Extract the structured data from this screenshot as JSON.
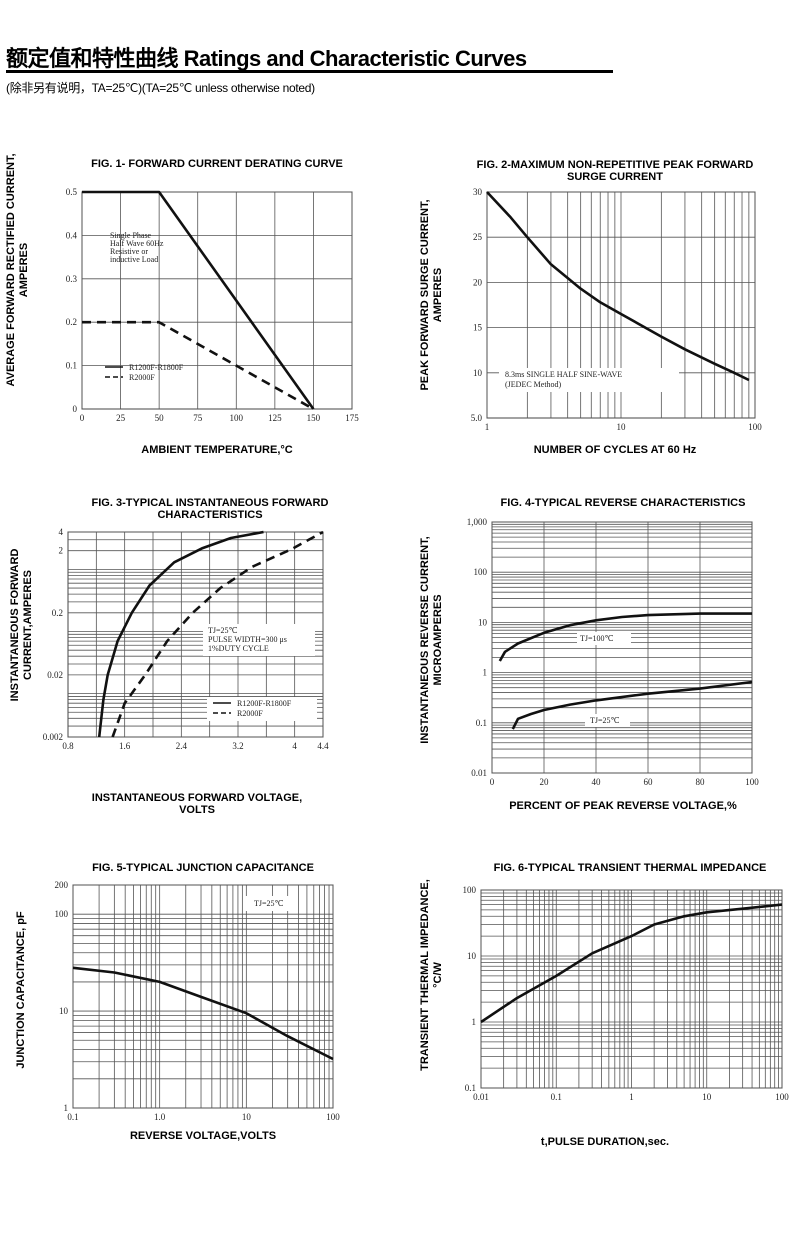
{
  "header": {
    "title": "额定值和特性曲线 Ratings and Characteristic Curves",
    "subtitle": "(除非另有说明，TA=25℃)(TA=25℃  unless otherwise noted)"
  },
  "chart_data": [
    {
      "type": "line",
      "title": [
        "FIG. 1- FORWARD CURRENT DERATING CURVE"
      ],
      "xlabel": [
        "AMBIENT TEMPERATURE,°C"
      ],
      "ylabel": [
        "AVERAGE FORWARD RECTIFIED CURRENT,",
        "AMPERES"
      ],
      "xscale": "linear",
      "yscale": "linear",
      "xlim": [
        0,
        175
      ],
      "ylim": [
        0,
        0.5
      ],
      "x_ticks": [
        "0",
        "25",
        "50",
        "75",
        "100",
        "125",
        "150",
        "175"
      ],
      "y_ticks": [
        "0",
        "0.1",
        "0.2",
        "0.3",
        "0.4",
        "0.5"
      ],
      "grid": true,
      "series": [
        {
          "name": "R1200F-R1800F",
          "style": "solid",
          "points": [
            [
              0,
              0.5
            ],
            [
              50,
              0.5
            ],
            [
              150,
              0
            ]
          ]
        },
        {
          "name": "R2000F",
          "style": "dashed",
          "points": [
            [
              0,
              0.2
            ],
            [
              50,
              0.2
            ],
            [
              150,
              0
            ]
          ]
        }
      ],
      "annotations": [
        "Single Phase",
        "Half Wave 60Hz",
        "Resistive or",
        "inductive Load"
      ],
      "legend": "bottom-left"
    },
    {
      "type": "line",
      "title": [
        "FIG. 2-MAXIMUM NON-REPETITIVE PEAK FORWARD",
        "SURGE CURRENT"
      ],
      "xlabel": [
        "NUMBER OF CYCLES AT 60 Hz"
      ],
      "ylabel": [
        "PEAK FORWARD SURGE CURRENT,",
        "AMPERES"
      ],
      "xscale": "log",
      "yscale": "linear",
      "xlim": [
        1,
        100
      ],
      "ylim": [
        5,
        30
      ],
      "x_ticks": [
        "1",
        "10",
        "100"
      ],
      "y_ticks": [
        "5.0",
        "10",
        "15",
        "20",
        "25",
        "30"
      ],
      "grid": true,
      "series": [
        {
          "style": "solid",
          "points": [
            [
              1,
              30
            ],
            [
              1.5,
              27.2
            ],
            [
              2,
              25
            ],
            [
              3,
              22
            ],
            [
              5,
              19.3
            ],
            [
              7,
              17.8
            ],
            [
              10,
              16.5
            ],
            [
              20,
              14
            ],
            [
              30,
              12.6
            ],
            [
              50,
              11
            ],
            [
              70,
              10
            ],
            [
              90,
              9.2
            ]
          ]
        }
      ],
      "annotations": [
        "8.3ms SINGLE HALF SINE-WAVE",
        "(JEDEC Method)"
      ]
    },
    {
      "type": "line",
      "title": [
        "FIG. 3-TYPICAL INSTANTANEOUS FORWARD",
        "CHARACTERISTICS"
      ],
      "xlabel": [
        "INSTANTANEOUS FORWARD VOLTAGE,",
        "VOLTS"
      ],
      "ylabel": [
        "INSTANTANEOUS FORWARD",
        "CURRENT,AMPERES"
      ],
      "xscale": "linear",
      "yscale": "log",
      "xlim": [
        0.8,
        4.4
      ],
      "ylim": [
        0.002,
        4
      ],
      "x_ticks": [
        "0.8",
        "1.6",
        "2.4",
        "3.2",
        "4",
        "4.4"
      ],
      "y_ticks": [
        "0.002",
        "0.02",
        "0.2",
        "2",
        "4"
      ],
      "grid": true,
      "series": [
        {
          "name": "R1200F-R1800F",
          "style": "solid",
          "points": [
            [
              1.24,
              0.002
            ],
            [
              1.3,
              0.008
            ],
            [
              1.36,
              0.02
            ],
            [
              1.5,
              0.07
            ],
            [
              1.7,
              0.2
            ],
            [
              1.95,
              0.55
            ],
            [
              2.3,
              1.3
            ],
            [
              2.7,
              2.2
            ],
            [
              3.1,
              3.2
            ],
            [
              3.56,
              4
            ]
          ]
        },
        {
          "name": "R2000F",
          "style": "dashed",
          "points": [
            [
              1.43,
              0.002
            ],
            [
              1.6,
              0.007
            ],
            [
              1.89,
              0.02
            ],
            [
              2.2,
              0.07
            ],
            [
              2.56,
              0.2
            ],
            [
              2.95,
              0.5
            ],
            [
              3.4,
              1.1
            ],
            [
              3.95,
              2.1
            ],
            [
              4.4,
              4
            ]
          ]
        }
      ],
      "annotations": [
        "TJ=25℃",
        "PULSE WIDTH=300 μs",
        "1%DUTY CYCLE"
      ],
      "legend": "bottom-right"
    },
    {
      "type": "line",
      "title": [
        "FIG. 4-TYPICAL REVERSE CHARACTERISTICS"
      ],
      "xlabel": [
        "PERCENT OF PEAK REVERSE VOLTAGE,%"
      ],
      "ylabel": [
        "INSTANTANEOUS REVERSE CURRENT,",
        "MICROAMPERES"
      ],
      "xscale": "linear",
      "yscale": "log",
      "xlim": [
        0,
        100
      ],
      "ylim": [
        0.01,
        1000
      ],
      "x_ticks": [
        "0",
        "20",
        "40",
        "60",
        "80",
        "100"
      ],
      "y_ticks": [
        "0.01",
        "0.1",
        "1",
        "10",
        "100",
        "1,000"
      ],
      "grid": true,
      "series": [
        {
          "name": "TJ=100℃",
          "style": "solid",
          "points": [
            [
              3,
              1.7
            ],
            [
              5,
              2.6
            ],
            [
              10,
              3.8
            ],
            [
              20,
              6.2
            ],
            [
              30,
              8.8
            ],
            [
              40,
              11
            ],
            [
              50,
              12.8
            ],
            [
              60,
              14
            ],
            [
              80,
              15
            ],
            [
              100,
              15
            ]
          ]
        },
        {
          "name": "TJ=25℃",
          "style": "solid",
          "points": [
            [
              8,
              0.075
            ],
            [
              10,
              0.12
            ],
            [
              15,
              0.15
            ],
            [
              20,
              0.18
            ],
            [
              30,
              0.23
            ],
            [
              40,
              0.28
            ],
            [
              60,
              0.38
            ],
            [
              80,
              0.48
            ],
            [
              100,
              0.65
            ]
          ]
        }
      ],
      "annotations": [
        "TJ=100℃",
        "TJ=25℃"
      ]
    },
    {
      "type": "line",
      "title": [
        "FIG. 5-TYPICAL JUNCTION CAPACITANCE"
      ],
      "xlabel": [
        "REVERSE VOLTAGE,VOLTS"
      ],
      "ylabel": [
        "JUNCTION CAPACITANCE, pF"
      ],
      "xscale": "log",
      "yscale": "log",
      "xlim": [
        0.1,
        100
      ],
      "ylim": [
        1,
        200
      ],
      "x_ticks": [
        "0.1",
        "1.0",
        "10",
        "100"
      ],
      "y_ticks": [
        "1",
        "10",
        "100",
        "200"
      ],
      "grid": true,
      "series": [
        {
          "style": "solid",
          "points": [
            [
              0.1,
              28
            ],
            [
              0.3,
              25
            ],
            [
              1,
              20
            ],
            [
              3,
              14
            ],
            [
              10,
              9.5
            ],
            [
              30,
              5.5
            ],
            [
              100,
              3.2
            ]
          ]
        }
      ],
      "annotations": [
        "TJ=25℃"
      ]
    },
    {
      "type": "line",
      "title": [
        "FIG. 6-TYPICAL TRANSIENT THERMAL IMPEDANCE"
      ],
      "xlabel": [
        "t,PULSE DURATION,sec."
      ],
      "ylabel": [
        "TRANSIENT THERMAL IMPEDANCE,",
        "°C/W"
      ],
      "xscale": "log",
      "yscale": "log",
      "xlim": [
        0.01,
        100
      ],
      "ylim": [
        0.1,
        100
      ],
      "x_ticks": [
        "0.01",
        "0.1",
        "1",
        "10",
        "100"
      ],
      "y_ticks": [
        "0.1",
        "1",
        "10",
        "100"
      ],
      "grid": true,
      "series": [
        {
          "style": "solid",
          "points": [
            [
              0.01,
              1
            ],
            [
              0.03,
              2.3
            ],
            [
              0.1,
              5
            ],
            [
              0.3,
              11
            ],
            [
              1,
              20
            ],
            [
              2,
              30
            ],
            [
              5,
              40
            ],
            [
              10,
              46
            ],
            [
              30,
              52
            ],
            [
              100,
              60
            ]
          ]
        }
      ]
    }
  ]
}
